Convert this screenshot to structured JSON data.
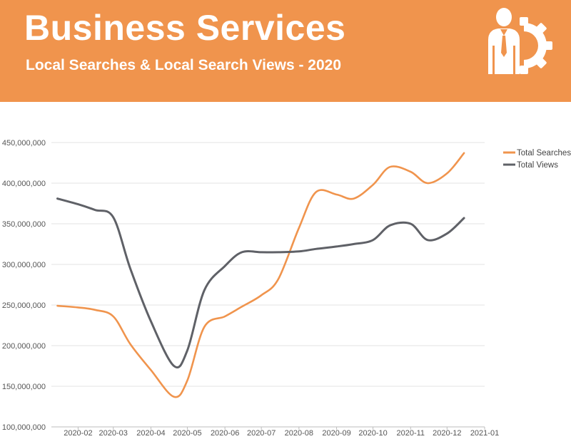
{
  "header": {
    "title": "Business Services",
    "subtitle": "Local Searches & Local Search Views - 2020",
    "logo_icon": "businessman-gear-icon",
    "background_color": "#f0944d"
  },
  "chart_data": {
    "type": "line",
    "x": [
      "2020-01-15",
      "2020-02-01",
      "2020-02-15",
      "2020-03-01",
      "2020-03-15",
      "2020-04-01",
      "2020-04-20",
      "2020-05-01",
      "2020-05-15",
      "2020-06-01",
      "2020-06-15",
      "2020-07-01",
      "2020-07-15",
      "2020-08-01",
      "2020-08-15",
      "2020-09-01",
      "2020-09-15",
      "2020-10-01",
      "2020-10-15",
      "2020-11-01",
      "2020-11-15",
      "2020-12-01",
      "2020-12-15"
    ],
    "series": [
      {
        "name": "Total Searches",
        "color": "#f0944d",
        "values": [
          249000000,
          247000000,
          244000000,
          236000000,
          202000000,
          170000000,
          137000000,
          157000000,
          223000000,
          236000000,
          248000000,
          262000000,
          282000000,
          345000000,
          389000000,
          386000000,
          381000000,
          398000000,
          420000000,
          414000000,
          400000000,
          412000000,
          437000000
        ]
      },
      {
        "name": "Total Views",
        "color": "#5f6167",
        "values": [
          381000000,
          374000000,
          367000000,
          358000000,
          295000000,
          230000000,
          175000000,
          194000000,
          268000000,
          298000000,
          315000000,
          315000000,
          315000000,
          316000000,
          319000000,
          322000000,
          325000000,
          330000000,
          348000000,
          350000000,
          330000000,
          338000000,
          357000000
        ]
      }
    ],
    "x_ticks": [
      "2020-02",
      "2020-03",
      "2020-04",
      "2020-05",
      "2020-06",
      "2020-07",
      "2020-08",
      "2020-09",
      "2020-10",
      "2020-11",
      "2020-12",
      "2021-01"
    ],
    "y_ticks": [
      "100,000,000",
      "150,000,000",
      "200,000,000",
      "250,000,000",
      "300,000,000",
      "350,000,000",
      "400,000,000",
      "450,000,000"
    ],
    "xlim": [
      "2020-01-10",
      "2021-01-01"
    ],
    "ylim": [
      100000000,
      450000000
    ],
    "grid": true,
    "legend_position": "top-right",
    "title": "",
    "xlabel": "",
    "ylabel": ""
  }
}
